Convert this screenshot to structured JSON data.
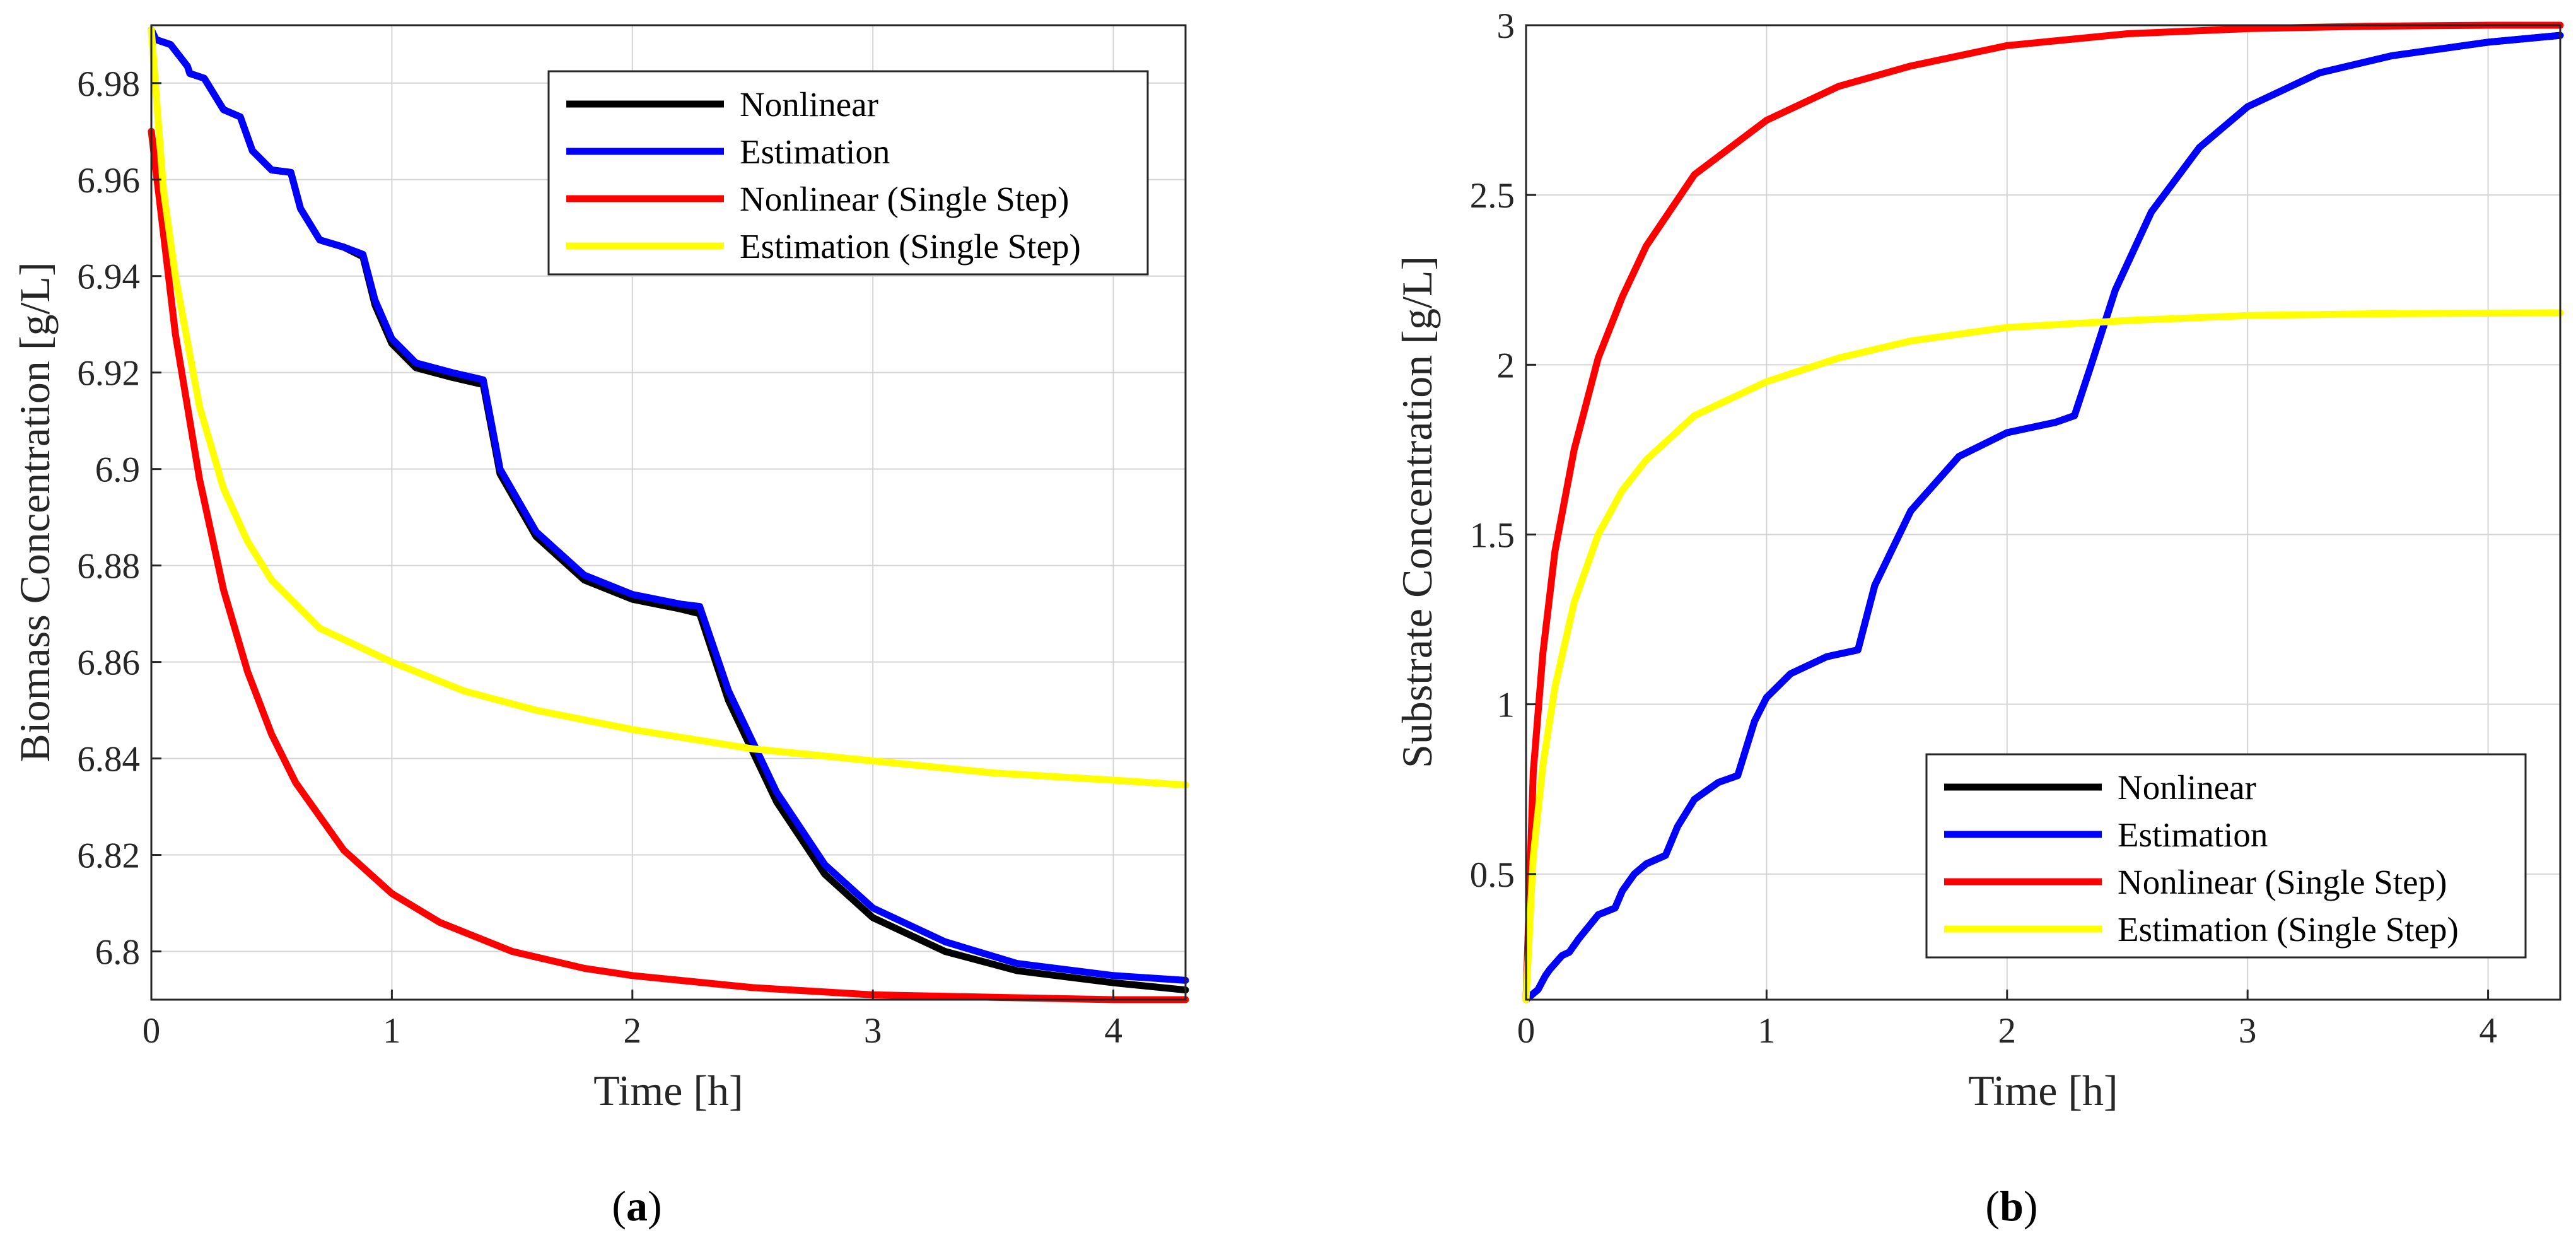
{
  "chart_data": [
    {
      "type": "line",
      "panel_label_open": "(",
      "panel_label": "a",
      "panel_label_close": ")",
      "title": "",
      "xlabel": "Time [h]",
      "ylabel": "Biomass Concentration [g/L]",
      "xlim": [
        0,
        4.3
      ],
      "ylim": [
        6.79,
        6.992
      ],
      "xticks": [
        0,
        1,
        2,
        3,
        4
      ],
      "yticks": [
        6.8,
        6.82,
        6.84,
        6.86,
        6.88,
        6.9,
        6.92,
        6.94,
        6.96,
        6.98
      ],
      "grid": true,
      "legend_position": "top-right",
      "series": [
        {
          "name": "Nonlinear",
          "color": "#000000",
          "x": [
            0,
            0.02,
            0.08,
            0.15,
            0.16,
            0.22,
            0.3,
            0.37,
            0.42,
            0.5,
            0.58,
            0.62,
            0.7,
            0.8,
            0.88,
            0.93,
            1.0,
            1.1,
            1.25,
            1.38,
            1.45,
            1.6,
            1.8,
            2.0,
            2.2,
            2.28,
            2.4,
            2.6,
            2.8,
            3.0,
            3.3,
            3.6,
            4.0,
            4.3
          ],
          "y": [
            6.991,
            6.989,
            6.988,
            6.9835,
            6.982,
            6.981,
            6.9745,
            6.973,
            6.966,
            6.962,
            6.9615,
            6.954,
            6.9475,
            6.946,
            6.944,
            6.934,
            6.926,
            6.921,
            6.919,
            6.9175,
            6.899,
            6.886,
            6.877,
            6.873,
            6.871,
            6.87,
            6.852,
            6.831,
            6.816,
            6.807,
            6.8,
            6.796,
            6.7935,
            6.792
          ]
        },
        {
          "name": "Estimation",
          "color": "#0000ff",
          "x": [
            0,
            0.02,
            0.08,
            0.15,
            0.16,
            0.22,
            0.3,
            0.37,
            0.42,
            0.5,
            0.58,
            0.62,
            0.7,
            0.8,
            0.88,
            0.93,
            1.0,
            1.1,
            1.25,
            1.38,
            1.45,
            1.6,
            1.8,
            2.0,
            2.2,
            2.28,
            2.4,
            2.6,
            2.8,
            3.0,
            3.3,
            3.6,
            4.0,
            4.3
          ],
          "y": [
            6.991,
            6.989,
            6.988,
            6.9835,
            6.982,
            6.981,
            6.9745,
            6.973,
            6.966,
            6.962,
            6.9615,
            6.954,
            6.9475,
            6.946,
            6.9445,
            6.935,
            6.927,
            6.922,
            6.92,
            6.9185,
            6.9,
            6.887,
            6.878,
            6.874,
            6.872,
            6.8715,
            6.854,
            6.833,
            6.818,
            6.809,
            6.802,
            6.7975,
            6.795,
            6.794
          ]
        },
        {
          "name": "Nonlinear (Single Step)",
          "color": "#ff0000",
          "x": [
            0,
            0.1,
            0.2,
            0.3,
            0.4,
            0.5,
            0.6,
            0.8,
            1.0,
            1.2,
            1.5,
            1.8,
            2.0,
            2.5,
            3.0,
            3.5,
            4.0,
            4.3
          ],
          "y": [
            6.97,
            6.928,
            6.898,
            6.875,
            6.858,
            6.845,
            6.835,
            6.821,
            6.812,
            6.806,
            6.8,
            6.7965,
            6.795,
            6.7925,
            6.791,
            6.7905,
            6.79,
            6.79
          ]
        },
        {
          "name": "Estimation (Single Step)",
          "color": "#ffff00",
          "x": [
            0,
            0.05,
            0.1,
            0.2,
            0.3,
            0.4,
            0.5,
            0.7,
            1.0,
            1.3,
            1.6,
            2.0,
            2.5,
            3.0,
            3.5,
            4.0,
            4.3
          ],
          "y": [
            6.991,
            6.958,
            6.94,
            6.913,
            6.896,
            6.885,
            6.877,
            6.867,
            6.86,
            6.854,
            6.85,
            6.846,
            6.842,
            6.8395,
            6.837,
            6.8355,
            6.8345
          ]
        }
      ]
    },
    {
      "type": "line",
      "panel_label_open": "(",
      "panel_label": "b",
      "panel_label_close": ")",
      "title": "",
      "xlabel": "Time [h]",
      "ylabel": "Substrate Concentration [g/L]",
      "xlim": [
        0,
        4.3
      ],
      "ylim": [
        0.13,
        3.0
      ],
      "xticks": [
        0,
        1,
        2,
        3,
        4
      ],
      "yticks": [
        0.5,
        1,
        1.5,
        2,
        2.5,
        3
      ],
      "grid": true,
      "legend_position": "bottom-right",
      "series": [
        {
          "name": "Nonlinear",
          "color": "#000000",
          "x": [
            0,
            0.05,
            0.08,
            0.1,
            0.15,
            0.18,
            0.22,
            0.3,
            0.37,
            0.4,
            0.45,
            0.5,
            0.58,
            0.63,
            0.7,
            0.8,
            0.88,
            0.95,
            1.0,
            1.1,
            1.25,
            1.38,
            1.45,
            1.6,
            1.8,
            2.0,
            2.2,
            2.28,
            2.35,
            2.45,
            2.6,
            2.8,
            3.0,
            3.3,
            3.6,
            4.0,
            4.3
          ],
          "y": [
            0.13,
            0.16,
            0.2,
            0.22,
            0.26,
            0.27,
            0.31,
            0.38,
            0.4,
            0.45,
            0.5,
            0.53,
            0.555,
            0.64,
            0.72,
            0.77,
            0.79,
            0.95,
            1.02,
            1.09,
            1.14,
            1.16,
            1.35,
            1.57,
            1.73,
            1.8,
            1.83,
            1.85,
            2.0,
            2.22,
            2.45,
            2.64,
            2.76,
            2.86,
            2.91,
            2.95,
            2.97
          ]
        },
        {
          "name": "Estimation",
          "color": "#0000ff",
          "x": [
            0,
            0.05,
            0.08,
            0.1,
            0.15,
            0.18,
            0.22,
            0.3,
            0.37,
            0.4,
            0.45,
            0.5,
            0.58,
            0.63,
            0.7,
            0.8,
            0.88,
            0.95,
            1.0,
            1.1,
            1.25,
            1.38,
            1.45,
            1.6,
            1.8,
            2.0,
            2.2,
            2.28,
            2.35,
            2.45,
            2.6,
            2.8,
            3.0,
            3.3,
            3.6,
            4.0,
            4.3
          ],
          "y": [
            0.13,
            0.16,
            0.2,
            0.22,
            0.26,
            0.27,
            0.31,
            0.38,
            0.4,
            0.45,
            0.5,
            0.53,
            0.555,
            0.64,
            0.72,
            0.77,
            0.79,
            0.95,
            1.02,
            1.09,
            1.14,
            1.16,
            1.35,
            1.57,
            1.73,
            1.8,
            1.83,
            1.85,
            2.0,
            2.22,
            2.45,
            2.64,
            2.76,
            2.86,
            2.91,
            2.95,
            2.97
          ]
        },
        {
          "name": "Nonlinear (Single Step)",
          "color": "#ff0000",
          "x": [
            0,
            0.03,
            0.07,
            0.12,
            0.2,
            0.3,
            0.4,
            0.5,
            0.7,
            1.0,
            1.3,
            1.6,
            2.0,
            2.5,
            3.0,
            3.5,
            4.0,
            4.3
          ],
          "y": [
            0.13,
            0.8,
            1.15,
            1.45,
            1.75,
            2.02,
            2.2,
            2.35,
            2.56,
            2.72,
            2.82,
            2.88,
            2.94,
            2.975,
            2.99,
            2.997,
            3.0,
            3.0
          ]
        },
        {
          "name": "Estimation (Single Step)",
          "color": "#ffff00",
          "x": [
            0,
            0.03,
            0.07,
            0.12,
            0.2,
            0.3,
            0.4,
            0.5,
            0.7,
            1.0,
            1.3,
            1.6,
            2.0,
            2.5,
            3.0,
            3.5,
            4.0,
            4.3
          ],
          "y": [
            0.13,
            0.55,
            0.82,
            1.05,
            1.3,
            1.5,
            1.63,
            1.72,
            1.85,
            1.95,
            2.02,
            2.07,
            2.11,
            2.13,
            2.145,
            2.15,
            2.152,
            2.153
          ]
        }
      ]
    }
  ]
}
